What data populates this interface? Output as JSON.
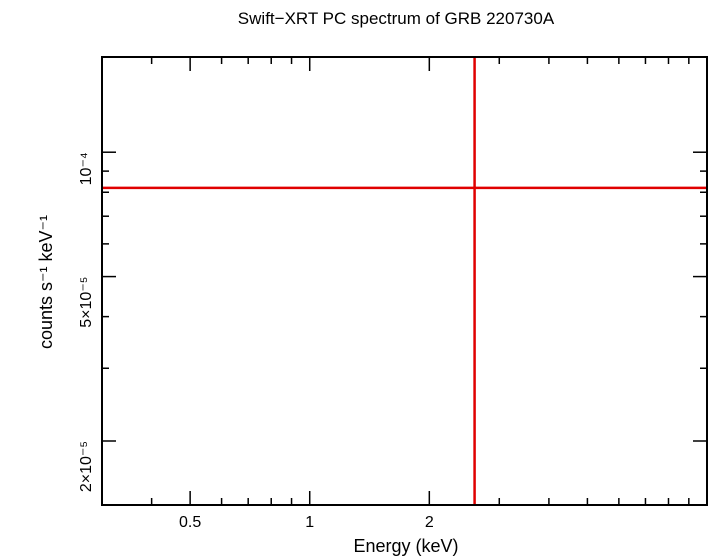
{
  "chart_data": {
    "type": "scatter",
    "title": "Swift−XRT PC spectrum of GRB 220730A",
    "xlabel": "Energy (keV)",
    "ylabel": "counts s⁻¹ keV⁻¹",
    "xscale": "log",
    "yscale": "log",
    "xlim": [
      0.3,
      10
    ],
    "ylim": [
      1.4e-05,
      0.00017
    ],
    "x_major_ticks": [
      0.5,
      1,
      2
    ],
    "x_tick_labels": [
      "0.5",
      "1",
      "2"
    ],
    "y_major_ticks": [
      2e-05,
      5e-05,
      0.0001
    ],
    "y_tick_labels": [
      "2×10⁻⁵",
      "5×10⁻⁵",
      "10⁻⁴"
    ],
    "series": [
      {
        "color": "#e00000",
        "points": [
          {
            "x": 2.6,
            "y": 8.2e-05,
            "x_err": [
              2.3,
              7.6
            ],
            "y_err": [
              6.8e-05,
              0.000105
            ]
          }
        ]
      }
    ],
    "grid": false,
    "legend": "none"
  }
}
